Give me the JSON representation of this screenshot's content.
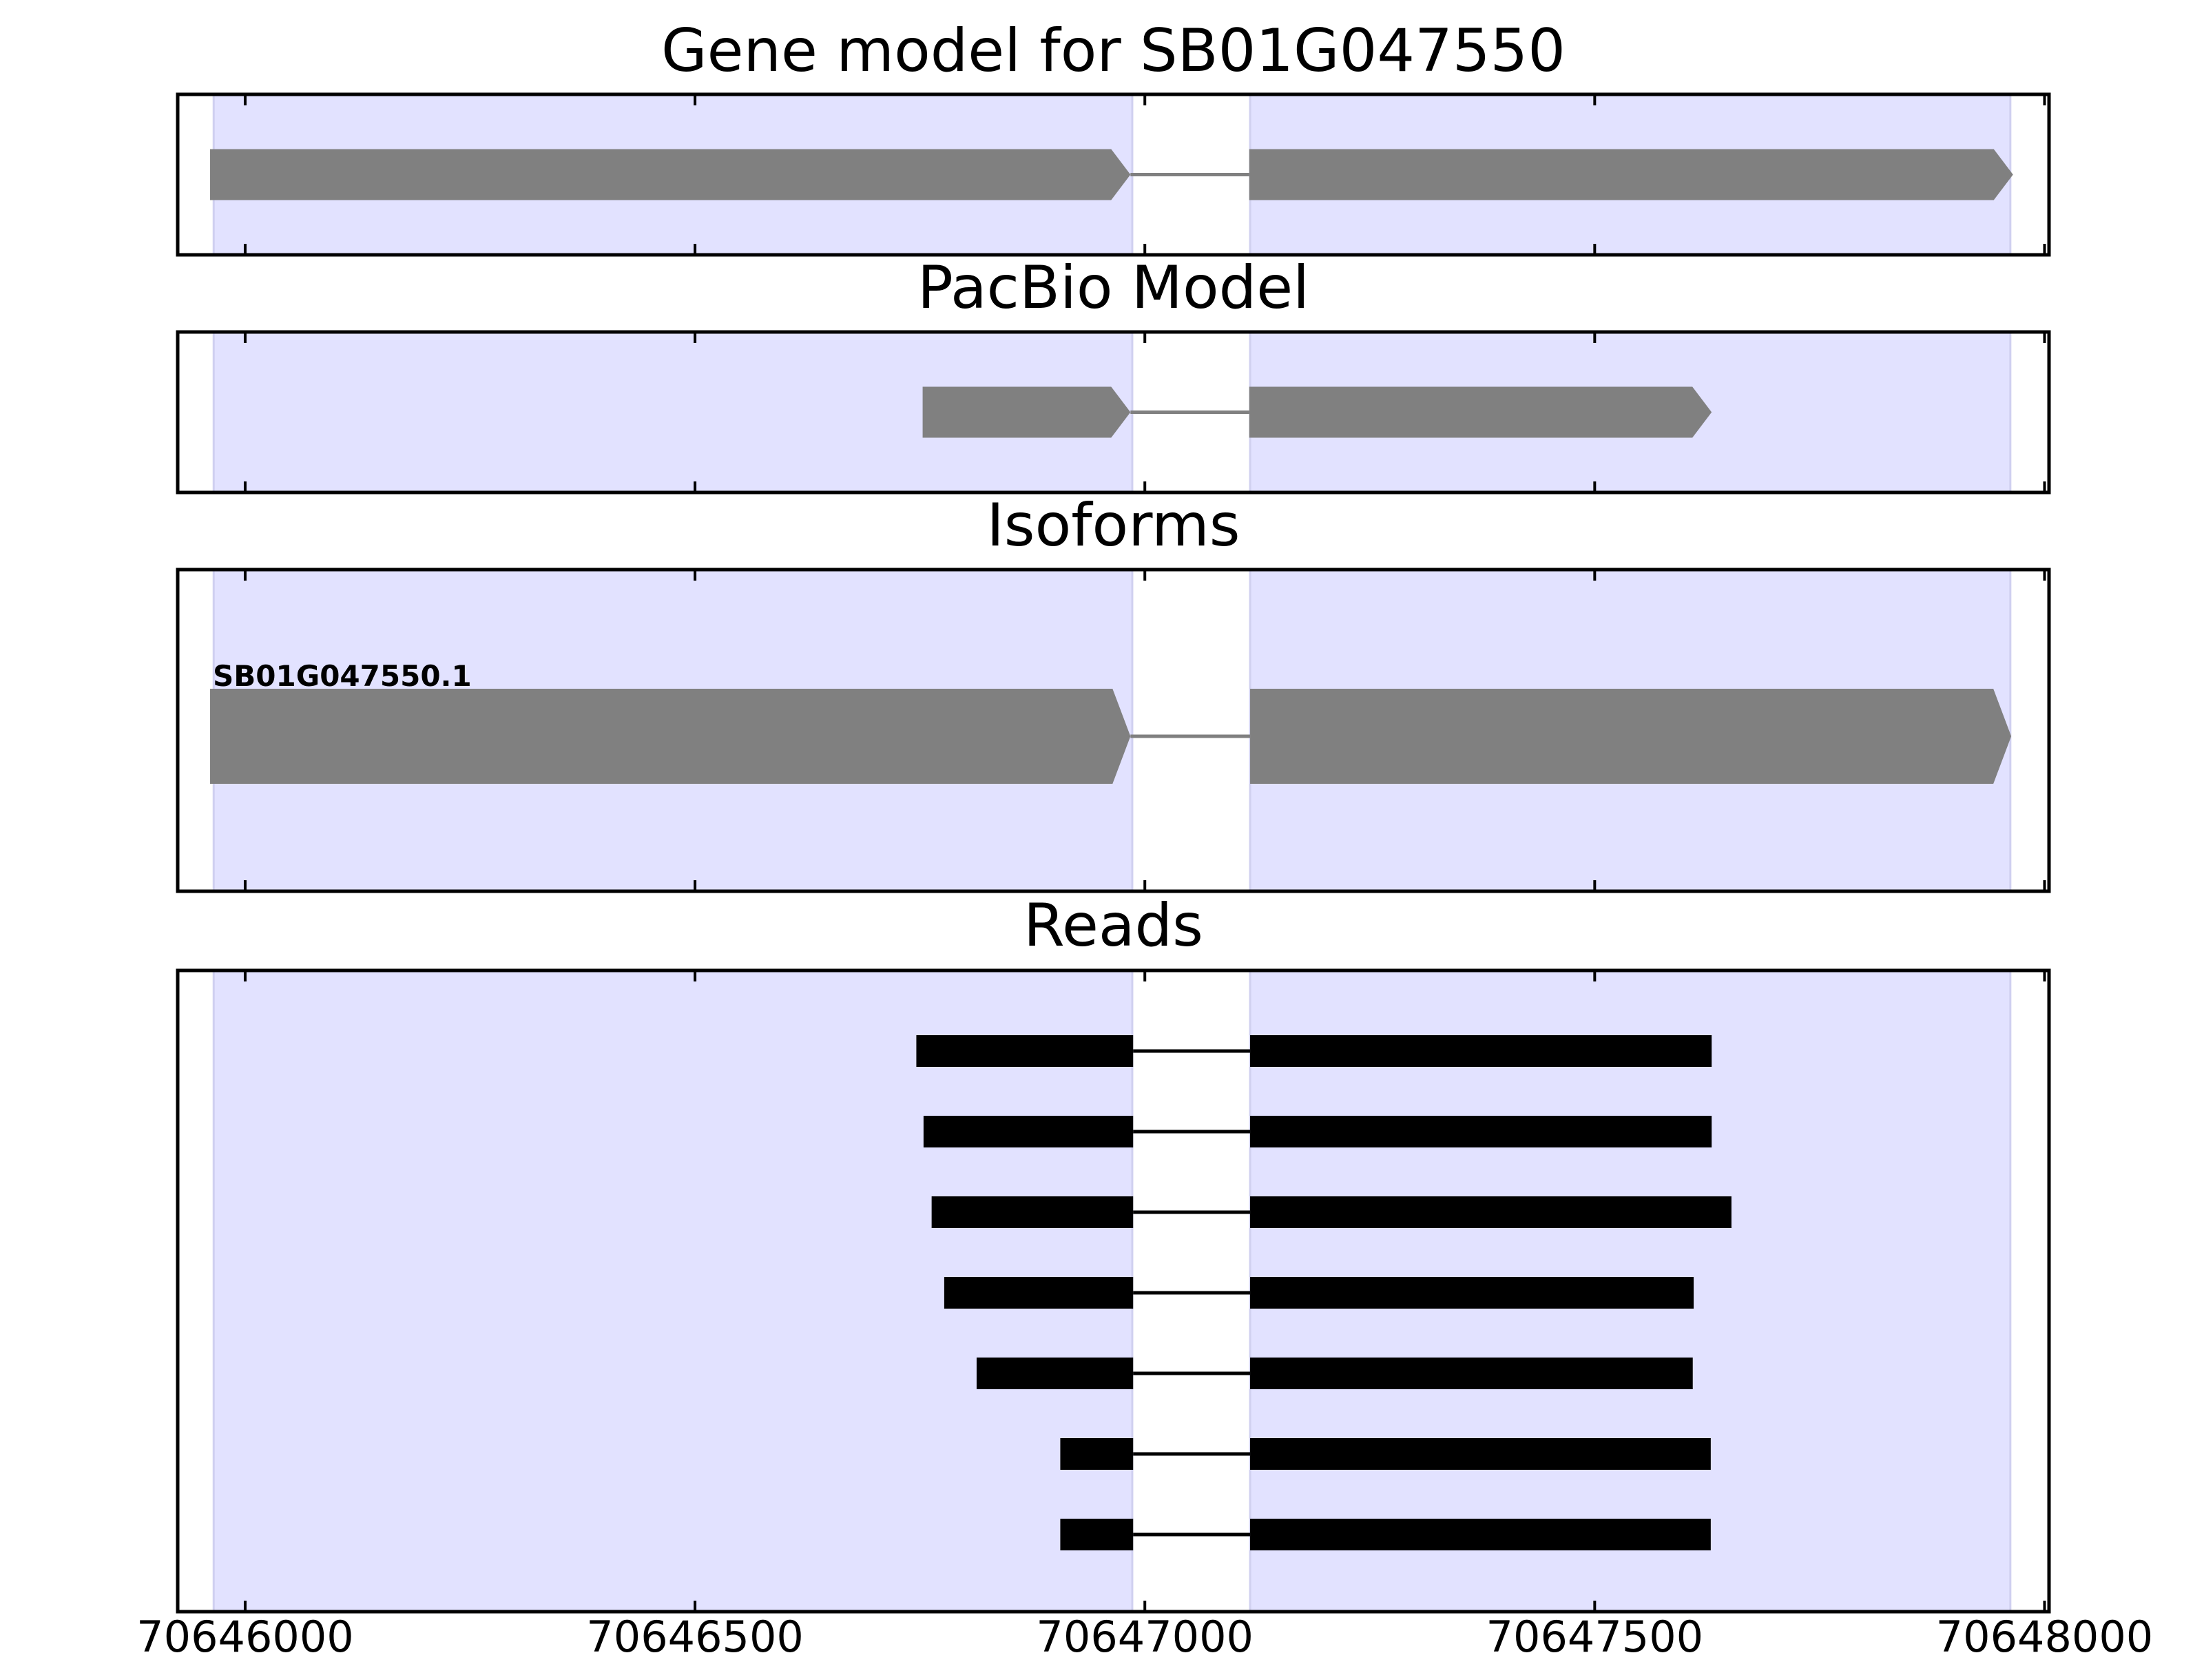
{
  "chart_data": {
    "type": "gene_track",
    "xlim": [
      70645925,
      70648005
    ],
    "xticks": [
      70646000,
      70646500,
      70647000,
      70647500,
      70648000
    ],
    "tick_labels": [
      "70646000",
      "70646500",
      "70647000",
      "70647500",
      "70648000"
    ],
    "colors": {
      "exon_region": "#e2e2ff",
      "exon_region_edge": "#d0d0f0",
      "feature": "#808080",
      "read": "#000000",
      "intron": "#808080",
      "read_intron": "#000000",
      "frame": "#000000"
    },
    "exon_regions": [
      [
        70645965,
        70646986
      ],
      [
        70647117,
        70647962
      ]
    ],
    "panels": [
      {
        "name": "gene-model",
        "title": "Gene model for SB01G047550",
        "kind": "model",
        "features": [
          {
            "exons": [
              [
                70645961,
                70646984
              ],
              [
                70647116,
                70647965
              ]
            ],
            "label": ""
          }
        ]
      },
      {
        "name": "pacbio-model",
        "title": "PacBio Model",
        "kind": "model",
        "features": [
          {
            "exons": [
              [
                70646753,
                70646984
              ],
              [
                70647116,
                70647630
              ]
            ],
            "label": ""
          }
        ]
      },
      {
        "name": "isoforms",
        "title": "Isoforms",
        "kind": "isoform",
        "features": [
          {
            "exons": [
              [
                70645961,
                70646984
              ],
              [
                70647117,
                70647963
              ]
            ],
            "label": "SB01G047550.1"
          }
        ]
      },
      {
        "name": "reads",
        "title": "Reads",
        "kind": "reads",
        "features": [
          {
            "exons": [
              [
                70646746,
                70646987
              ],
              [
                70647117,
                70647630
              ]
            ]
          },
          {
            "exons": [
              [
                70646754,
                70646987
              ],
              [
                70647117,
                70647630
              ]
            ]
          },
          {
            "exons": [
              [
                70646763,
                70646987
              ],
              [
                70647117,
                70647652
              ]
            ]
          },
          {
            "exons": [
              [
                70646777,
                70646987
              ],
              [
                70647117,
                70647610
              ]
            ]
          },
          {
            "exons": [
              [
                70646813,
                70646987
              ],
              [
                70647117,
                70647609
              ]
            ]
          },
          {
            "exons": [
              [
                70646906,
                70646987
              ],
              [
                70647117,
                70647629
              ]
            ]
          },
          {
            "exons": [
              [
                70646906,
                70646987
              ],
              [
                70647117,
                70647629
              ]
            ]
          }
        ]
      }
    ]
  }
}
